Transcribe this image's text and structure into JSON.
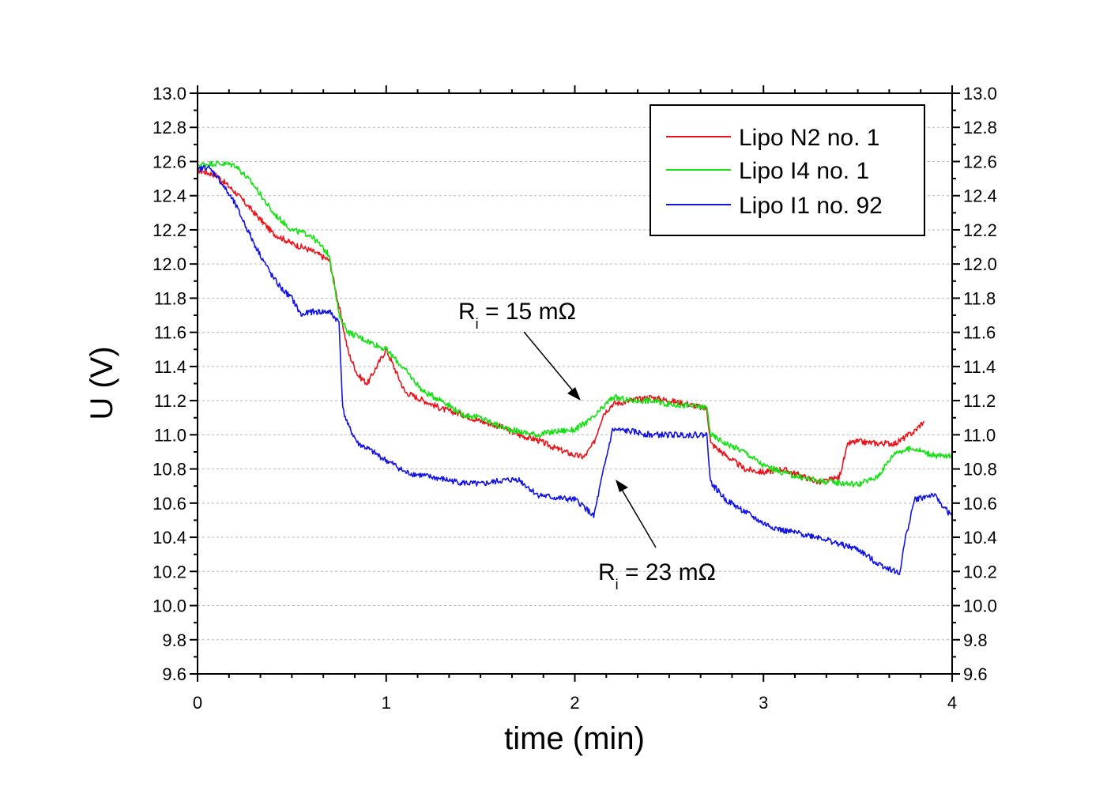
{
  "chart_data": {
    "type": "line",
    "xlabel": "time (min)",
    "ylabel": "U (V)",
    "xlim": [
      0,
      4
    ],
    "ylim": [
      9.6,
      13.0
    ],
    "xticks": [
      "0",
      "1",
      "2",
      "3",
      "4"
    ],
    "yticks": [
      "9.6",
      "9.8",
      "10.0",
      "10.2",
      "10.4",
      "10.6",
      "10.8",
      "11.0",
      "11.2",
      "11.4",
      "11.6",
      "11.8",
      "12.0",
      "12.2",
      "12.4",
      "12.6",
      "12.8",
      "13.0"
    ],
    "grid": true,
    "legend_position": "top-right",
    "series": [
      {
        "name": "Lipo N2 no. 1",
        "color": "#e8141b",
        "x": [
          0,
          0.1,
          0.2,
          0.3,
          0.4,
          0.5,
          0.6,
          0.7,
          0.75,
          0.8,
          0.85,
          0.9,
          0.95,
          1.0,
          1.1,
          1.2,
          1.3,
          1.4,
          1.5,
          1.6,
          1.7,
          1.8,
          1.9,
          2.0,
          2.05,
          2.1,
          2.15,
          2.2,
          2.3,
          2.4,
          2.5,
          2.6,
          2.7,
          2.72,
          2.8,
          2.9,
          3.0,
          3.1,
          3.2,
          3.3,
          3.4,
          3.45,
          3.5,
          3.6,
          3.7,
          3.8,
          3.85
        ],
        "y": [
          12.55,
          12.52,
          12.42,
          12.3,
          12.18,
          12.12,
          12.08,
          12.02,
          11.75,
          11.48,
          11.35,
          11.3,
          11.4,
          11.5,
          11.25,
          11.2,
          11.15,
          11.12,
          11.08,
          11.05,
          11.0,
          10.97,
          10.92,
          10.88,
          10.87,
          10.95,
          11.12,
          11.18,
          11.2,
          11.22,
          11.2,
          11.18,
          11.15,
          10.95,
          10.88,
          10.8,
          10.78,
          10.8,
          10.76,
          10.72,
          10.75,
          10.95,
          10.96,
          10.95,
          10.95,
          11.02,
          11.08
        ]
      },
      {
        "name": "Lipo I4 no. 1",
        "color": "#14e014",
        "x": [
          0,
          0.1,
          0.2,
          0.3,
          0.4,
          0.5,
          0.6,
          0.7,
          0.75,
          0.8,
          0.9,
          1.0,
          1.1,
          1.2,
          1.3,
          1.4,
          1.5,
          1.6,
          1.7,
          1.8,
          1.9,
          2.0,
          2.1,
          2.2,
          2.3,
          2.4,
          2.5,
          2.6,
          2.7,
          2.72,
          2.8,
          2.9,
          3.0,
          3.1,
          3.2,
          3.3,
          3.4,
          3.5,
          3.6,
          3.7,
          3.8,
          3.9,
          4.0
        ],
        "y": [
          12.58,
          12.59,
          12.58,
          12.46,
          12.3,
          12.2,
          12.17,
          12.05,
          11.7,
          11.6,
          11.55,
          11.5,
          11.38,
          11.25,
          11.2,
          11.12,
          11.1,
          11.05,
          11.02,
          11.0,
          11.02,
          11.03,
          11.1,
          11.22,
          11.2,
          11.2,
          11.18,
          11.17,
          11.16,
          11.0,
          10.95,
          10.9,
          10.82,
          10.78,
          10.75,
          10.73,
          10.72,
          10.71,
          10.75,
          10.9,
          10.92,
          10.88,
          10.87
        ]
      },
      {
        "name": "Lipo I1 no. 92",
        "color": "#1414e0",
        "x": [
          0,
          0.05,
          0.1,
          0.2,
          0.3,
          0.4,
          0.45,
          0.5,
          0.55,
          0.6,
          0.7,
          0.75,
          0.77,
          0.8,
          0.85,
          0.9,
          1.0,
          1.05,
          1.1,
          1.2,
          1.3,
          1.4,
          1.5,
          1.6,
          1.7,
          1.8,
          1.9,
          2.0,
          2.05,
          2.1,
          2.15,
          2.2,
          2.3,
          2.4,
          2.5,
          2.6,
          2.7,
          2.72,
          2.8,
          2.9,
          3.0,
          3.1,
          3.2,
          3.3,
          3.4,
          3.5,
          3.6,
          3.7,
          3.72,
          3.75,
          3.8,
          3.9,
          4.0
        ],
        "y": [
          12.55,
          12.57,
          12.52,
          12.35,
          12.12,
          11.92,
          11.85,
          11.8,
          11.7,
          11.72,
          11.72,
          11.66,
          11.15,
          11.05,
          10.95,
          10.92,
          10.85,
          10.82,
          10.78,
          10.76,
          10.74,
          10.72,
          10.71,
          10.73,
          10.74,
          10.65,
          10.63,
          10.62,
          10.58,
          10.52,
          10.78,
          11.03,
          11.02,
          11.0,
          11.0,
          11.0,
          11.0,
          10.72,
          10.62,
          10.55,
          10.48,
          10.44,
          10.42,
          10.4,
          10.36,
          10.33,
          10.25,
          10.2,
          10.18,
          10.38,
          10.62,
          10.65,
          10.52
        ]
      }
    ],
    "annotations": [
      {
        "main": "R",
        "sub": "i",
        "rest": " = 15 mΩ"
      },
      {
        "main": "R",
        "sub": "i",
        "rest": " = 23 mΩ"
      }
    ]
  }
}
